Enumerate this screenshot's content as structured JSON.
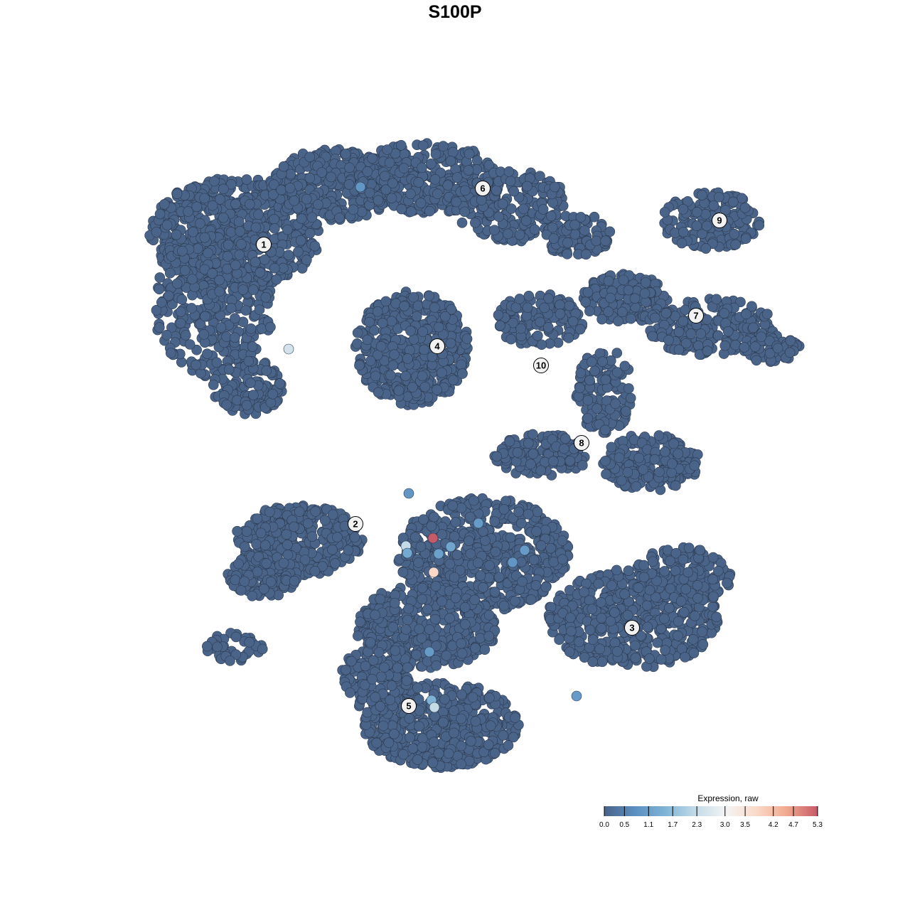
{
  "chart_data": {
    "type": "scatter",
    "title": "S100P",
    "xlabel": "",
    "ylabel": "",
    "grid": false,
    "base_color": "#4a6489",
    "clusters": [
      {
        "label": "1",
        "x": -26.9,
        "y": 29.6
      },
      {
        "label": "2",
        "x": -14.0,
        "y": -9.7
      },
      {
        "label": "3",
        "x": 24.9,
        "y": -24.3
      },
      {
        "label": "4",
        "x": -2.5,
        "y": 15.3
      },
      {
        "label": "5",
        "x": -6.5,
        "y": -35.3
      },
      {
        "label": "6",
        "x": 3.9,
        "y": 37.5
      },
      {
        "label": "7",
        "x": 33.9,
        "y": 19.6
      },
      {
        "label": "8",
        "x": 17.8,
        "y": 1.7
      },
      {
        "label": "9",
        "x": 37.2,
        "y": 33.0
      },
      {
        "label": "10",
        "x": 12.1,
        "y": 12.6
      }
    ],
    "expressing_points": [
      {
        "x": -13.3,
        "y": 37.7,
        "value": 0.9
      },
      {
        "x": -23.4,
        "y": 14.9,
        "value": 2.5
      },
      {
        "x": -6.5,
        "y": -5.4,
        "value": 0.9
      },
      {
        "x": -3.1,
        "y": -11.7,
        "value": 5.3
      },
      {
        "x": -6.9,
        "y": -12.8,
        "value": 2.3
      },
      {
        "x": -6.7,
        "y": -13.8,
        "value": 1.3
      },
      {
        "x": -2.3,
        "y": -13.9,
        "value": 1.1
      },
      {
        "x": -0.6,
        "y": -12.9,
        "value": 1.2
      },
      {
        "x": 3.3,
        "y": -9.6,
        "value": 1.0
      },
      {
        "x": 9.8,
        "y": -13.4,
        "value": 1.0
      },
      {
        "x": 8.1,
        "y": -15.1,
        "value": 0.9
      },
      {
        "x": -3.0,
        "y": -16.5,
        "value": 3.8
      },
      {
        "x": -3.6,
        "y": -27.7,
        "value": 1.0
      },
      {
        "x": -3.3,
        "y": -34.5,
        "value": 1.5
      },
      {
        "x": -2.9,
        "y": -35.5,
        "value": 2.3
      },
      {
        "x": 17.1,
        "y": -33.9,
        "value": 1.0
      }
    ],
    "legend": {
      "title": "Expression, raw",
      "position": "bottom-right",
      "ticks": [
        "0.0",
        "0.5",
        "1.1",
        "1.7",
        "2.3",
        "3.0",
        "3.5",
        "4.2",
        "4.7",
        "5.3"
      ],
      "range": [
        0,
        5.3
      ],
      "colors": [
        "#4a6489",
        "#5b8fc0",
        "#7fb4d6",
        "#c3dbe8",
        "#f4f4f4",
        "#fbd9c8",
        "#f0a88e",
        "#c75a68"
      ]
    }
  }
}
